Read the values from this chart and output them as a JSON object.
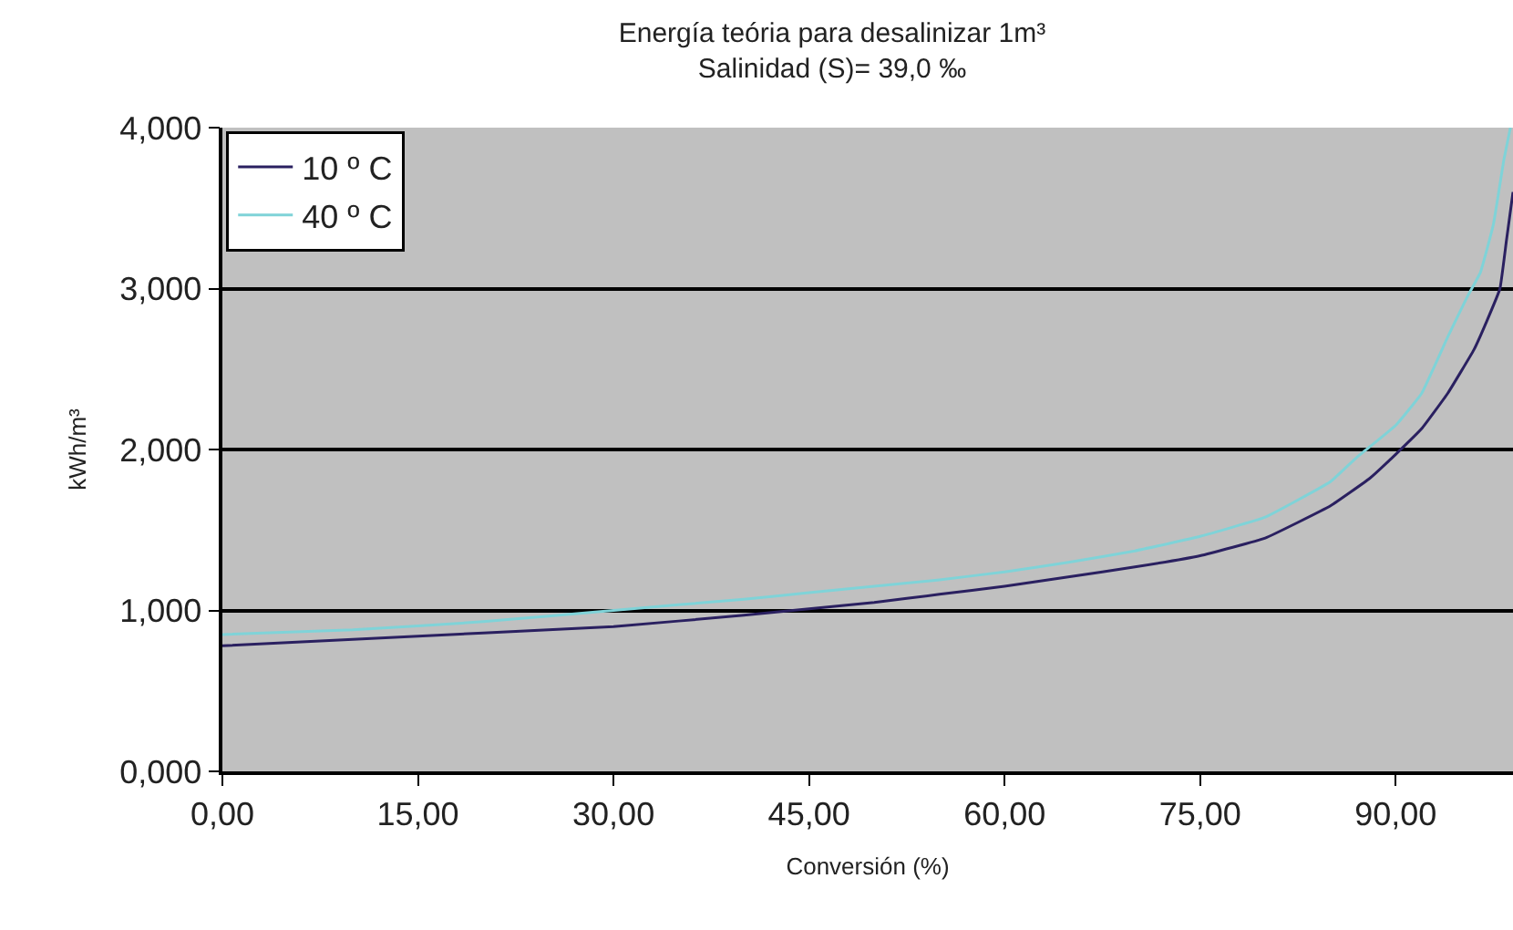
{
  "chart_data": {
    "type": "line",
    "title": "Energía teória para desalinizar 1m³",
    "subtitle": "Salinidad (S)= 39,0 ‰",
    "xlabel": "Conversión (%)",
    "ylabel": "kWh/m³",
    "xlim": [
      0,
      99
    ],
    "ylim": [
      0,
      4
    ],
    "xticks": [
      {
        "value": 0,
        "label": "0,00"
      },
      {
        "value": 15,
        "label": "15,00"
      },
      {
        "value": 30,
        "label": "30,00"
      },
      {
        "value": 45,
        "label": "45,00"
      },
      {
        "value": 60,
        "label": "60,00"
      },
      {
        "value": 75,
        "label": "75,00"
      },
      {
        "value": 90,
        "label": "90,00"
      }
    ],
    "yticks": [
      {
        "value": 0,
        "label": "0,000"
      },
      {
        "value": 1,
        "label": "1,000"
      },
      {
        "value": 2,
        "label": "2,000"
      },
      {
        "value": 3,
        "label": "3,000"
      },
      {
        "value": 4,
        "label": "4,000"
      }
    ],
    "grid": "y",
    "legend": "top left",
    "marker": "none",
    "line_style": "solid",
    "series": [
      {
        "name": "10 º C",
        "color": "#2a2060",
        "x": [
          0,
          10,
          20,
          30,
          40,
          45,
          50,
          55,
          60,
          65,
          70,
          75,
          80,
          85,
          88,
          90,
          92,
          94,
          96,
          97,
          98,
          98.5,
          99
        ],
        "values": [
          0.78,
          0.82,
          0.86,
          0.9,
          0.97,
          1.01,
          1.05,
          1.1,
          1.15,
          1.21,
          1.27,
          1.34,
          1.45,
          1.65,
          1.82,
          1.97,
          2.13,
          2.35,
          2.62,
          2.8,
          3.0,
          3.3,
          3.6
        ]
      },
      {
        "name": "40 º C",
        "color": "#7fd3d8",
        "x": [
          0,
          10,
          20,
          30,
          40,
          45,
          50,
          55,
          60,
          65,
          70,
          75,
          80,
          85,
          87,
          90,
          92,
          94,
          95.5,
          96.5,
          97.5,
          98.3,
          98.8
        ],
        "values": [
          0.85,
          0.88,
          0.93,
          1.0,
          1.07,
          1.11,
          1.15,
          1.19,
          1.24,
          1.3,
          1.37,
          1.46,
          1.58,
          1.8,
          1.95,
          2.15,
          2.35,
          2.7,
          2.95,
          3.1,
          3.4,
          3.8,
          4.0
        ]
      }
    ]
  }
}
